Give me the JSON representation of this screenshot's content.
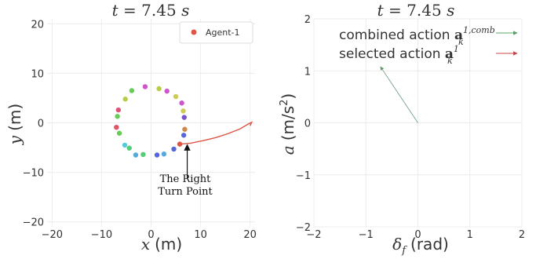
{
  "chart_data": [
    {
      "type": "scatter",
      "title": "t = 7.45 s",
      "title_parts": {
        "var": "t",
        "eq": " = 7.45 ",
        "unit": "s"
      },
      "xlabel": {
        "var": "x",
        "unit": "(m)"
      },
      "ylabel": {
        "var": "y",
        "unit": "(m)"
      },
      "xlim": [
        -21,
        21
      ],
      "ylim": [
        -21,
        21
      ],
      "xticks": [
        -20,
        -10,
        0,
        10,
        20
      ],
      "yticks": [
        -20,
        -10,
        0,
        10,
        20
      ],
      "grid": true,
      "legend": {
        "position": "top-right",
        "entries": [
          {
            "name": "Agent-1",
            "color": "#dd5544"
          }
        ]
      },
      "ring_points": [
        {
          "x": -1.2,
          "y": 7.3,
          "color": "#cc55cc"
        },
        {
          "x": 1.6,
          "y": 6.9,
          "color": "#bbcc44"
        },
        {
          "x": 3.2,
          "y": 6.4,
          "color": "#cc55cc"
        },
        {
          "x": 5.0,
          "y": 5.3,
          "color": "#cccc55"
        },
        {
          "x": 6.2,
          "y": 4.0,
          "color": "#cc55cc"
        },
        {
          "x": 6.5,
          "y": 2.4,
          "color": "#cccc55"
        },
        {
          "x": 6.7,
          "y": 1.1,
          "color": "#7755cc"
        },
        {
          "x": 6.8,
          "y": -1.3,
          "color": "#cc8844"
        },
        {
          "x": 6.6,
          "y": -2.5,
          "color": "#5566dd"
        },
        {
          "x": 5.8,
          "y": -4.3,
          "color": "#dd5544"
        },
        {
          "x": 4.6,
          "y": -5.3,
          "color": "#5566dd"
        },
        {
          "x": 2.6,
          "y": -6.3,
          "color": "#55aadd"
        },
        {
          "x": 1.2,
          "y": -6.5,
          "color": "#5566dd"
        },
        {
          "x": -1.6,
          "y": -6.4,
          "color": "#55cc77"
        },
        {
          "x": -3.1,
          "y": -6.5,
          "color": "#55aadd"
        },
        {
          "x": -4.4,
          "y": -5.1,
          "color": "#55cc77"
        },
        {
          "x": -5.3,
          "y": -4.5,
          "color": "#55ccdd"
        },
        {
          "x": -6.4,
          "y": -2.1,
          "color": "#66cc55"
        },
        {
          "x": -7.0,
          "y": -0.9,
          "color": "#dd5566"
        },
        {
          "x": -6.8,
          "y": 1.3,
          "color": "#66cc55"
        },
        {
          "x": -6.6,
          "y": 2.6,
          "color": "#dd5577"
        },
        {
          "x": -5.2,
          "y": 4.8,
          "color": "#bbcc44"
        },
        {
          "x": -3.9,
          "y": 6.5,
          "color": "#66cc55"
        }
      ],
      "trajectory": {
        "color": "#dd5544",
        "points": [
          [
            5.8,
            -4.3
          ],
          [
            8,
            -4.1
          ],
          [
            10.5,
            -3.6
          ],
          [
            13,
            -3.0
          ],
          [
            15.5,
            -2.2
          ],
          [
            18,
            -1.2
          ],
          [
            19.7,
            -0.2
          ],
          [
            20.3,
            0.1
          ],
          [
            20.0,
            -0.6
          ]
        ]
      },
      "annotation": {
        "text_lines": [
          "The Right",
          "Turn Point"
        ],
        "arrow_from": [
          7.3,
          -11.3
        ],
        "arrow_to": [
          7.3,
          -4.4
        ]
      }
    },
    {
      "type": "line",
      "title": "t = 7.45 s",
      "title_parts": {
        "var": "t",
        "eq": " = 7.45 ",
        "unit": "s"
      },
      "xlabel": {
        "var": "δ",
        "sub": "f",
        "unit": "(rad)"
      },
      "ylabel": {
        "var": "a",
        "unit": "(m/s",
        "sup": "2",
        "close": ")"
      },
      "xlim": [
        -2,
        2
      ],
      "ylim": [
        -2,
        2
      ],
      "xticks": [
        -2,
        -1,
        0,
        1,
        2
      ],
      "yticks": [
        -2,
        -1,
        0,
        1,
        2
      ],
      "grid": true,
      "legend": {
        "position": "top-right",
        "entries": [
          {
            "prefix": "combined action ",
            "sym": "a",
            "sub": "k",
            "sup": "1,comb",
            "color": "#55aa66"
          },
          {
            "prefix": "selected action ",
            "sym": "a",
            "sub": "k",
            "sup": "1",
            "color": "#cc4444"
          }
        ]
      },
      "arrows": [
        {
          "name": "combined action",
          "from": [
            0,
            0
          ],
          "to": [
            -0.72,
            1.08
          ],
          "color": "#6a9a7a"
        }
      ]
    }
  ]
}
